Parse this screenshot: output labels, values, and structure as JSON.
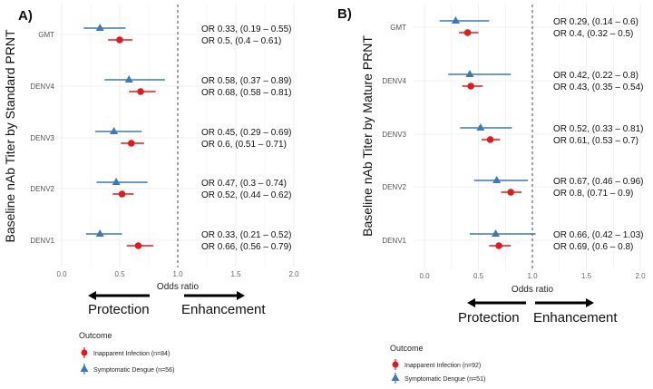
{
  "colors": {
    "inapparent": "#e31a1c",
    "symptomatic": "#3a7ab8",
    "grid": "#ebebeb"
  },
  "chart_data": [
    {
      "type": "forest",
      "panel_label": "A)",
      "ylabel": "Baseline nAb Titer by Standard PRNT",
      "xlabel": "Odds ratio",
      "xticks": [
        "0.0",
        "0.5",
        "1.0",
        "1.5",
        "2.0"
      ],
      "xlim": [
        0,
        2
      ],
      "reference_line": 1.0,
      "categories": [
        "GMT",
        "DENV4",
        "DENV3",
        "DENV2",
        "DENV1"
      ],
      "series": [
        {
          "name": "Symptomatic Dengue (n=56)",
          "marker": "triangle",
          "or": [
            0.33,
            0.58,
            0.45,
            0.47,
            0.33
          ],
          "lo": [
            0.19,
            0.37,
            0.29,
            0.3,
            0.21
          ],
          "hi": [
            0.55,
            0.89,
            0.69,
            0.74,
            0.52
          ],
          "labels": [
            "OR 0.33, (0.19 – 0.55)",
            "OR 0.58, (0.37 – 0.89)",
            "OR 0.45, (0.29 – 0.69)",
            "OR 0.47, (0.3 – 0.74)",
            "OR 0.33, (0.21 – 0.52)"
          ]
        },
        {
          "name": "Inapparent Infection (n=84)",
          "marker": "circle",
          "or": [
            0.5,
            0.68,
            0.6,
            0.52,
            0.66
          ],
          "lo": [
            0.4,
            0.58,
            0.51,
            0.44,
            0.56
          ],
          "hi": [
            0.61,
            0.81,
            0.71,
            0.62,
            0.79
          ],
          "labels": [
            "OR 0.5, (0.4 – 0.61)",
            "OR 0.68, (0.58 – 0.81)",
            "OR 0.6, (0.51 – 0.71)",
            "OR 0.52, (0.44 – 0.62)",
            "OR 0.66, (0.56 – 0.79)"
          ]
        }
      ],
      "arrows": {
        "left": "Protection",
        "right": "Enhancement"
      },
      "legend_title": "Outcome",
      "legend": [
        "Inapparent Infection (n=84)",
        "Symptomatic Dengue (n=56)"
      ]
    },
    {
      "type": "forest",
      "panel_label": "B)",
      "ylabel": "Baseline nAb Titer by Mature PRNT",
      "xlabel": "Odds ratio",
      "xticks": [
        "0.0",
        "0.5",
        "1.0",
        "1.5",
        "2.0"
      ],
      "xlim": [
        0,
        2
      ],
      "reference_line": 1.0,
      "categories": [
        "GMT",
        "DENV4",
        "DENV3",
        "DENV2",
        "DENV1"
      ],
      "series": [
        {
          "name": "Symptomatic Dengue (n=51)",
          "marker": "triangle",
          "or": [
            0.29,
            0.42,
            0.52,
            0.67,
            0.66
          ],
          "lo": [
            0.14,
            0.22,
            0.33,
            0.46,
            0.42
          ],
          "hi": [
            0.6,
            0.8,
            0.81,
            0.96,
            1.03
          ],
          "labels": [
            "OR 0.29, (0.14 – 0.6)",
            "OR 0.42, (0.22 – 0.8)",
            "OR 0.52, (0.33 – 0.81)",
            "OR 0.67, (0.46 – 0.96)",
            "OR 0.66, (0.42 – 1.03)"
          ]
        },
        {
          "name": "Inapparent Infection (n=92)",
          "marker": "circle",
          "or": [
            0.4,
            0.43,
            0.61,
            0.8,
            0.69
          ],
          "lo": [
            0.32,
            0.35,
            0.53,
            0.71,
            0.6
          ],
          "hi": [
            0.5,
            0.54,
            0.7,
            0.9,
            0.8
          ],
          "labels": [
            "OR 0.4, (0.32 – 0.5)",
            "OR 0.43, (0.35 – 0.54)",
            "OR 0.61, (0.53 – 0.7)",
            "OR 0.8, (0.71 – 0.9)",
            "OR 0.69, (0.6 – 0.8)"
          ]
        }
      ],
      "arrows": {
        "left": "Protection",
        "right": "Enhancement"
      },
      "legend_title": "Outcome",
      "legend": [
        "Inapparent Infection (n=92)",
        "Symptomatic Dengue (n=51)"
      ]
    }
  ]
}
